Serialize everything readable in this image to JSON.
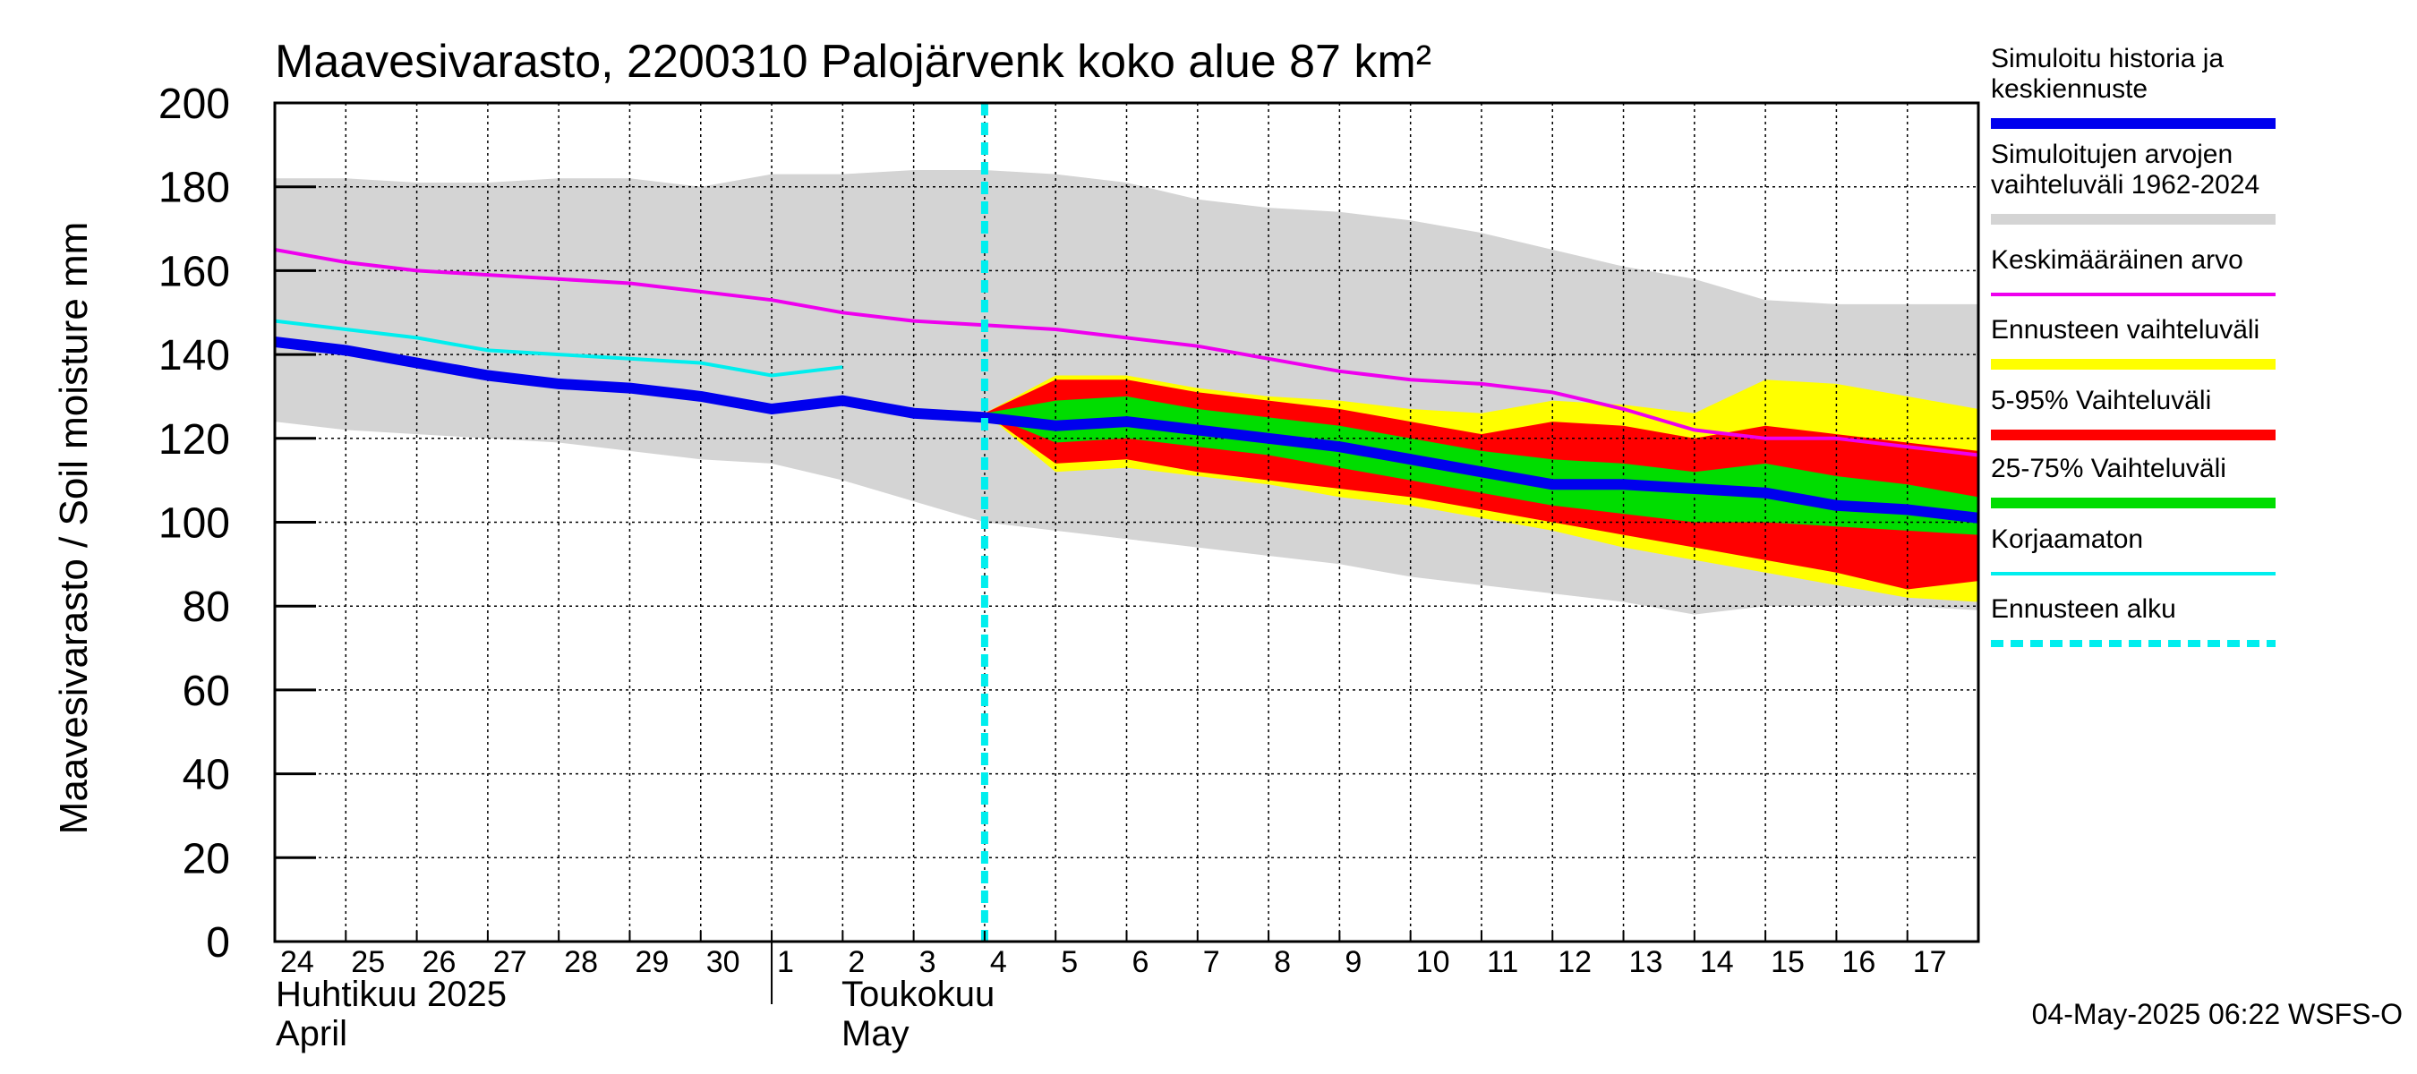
{
  "chart_data": {
    "type": "area",
    "title": "Maavesivarasto, 2200310 Palojärvenk koko alue 87 km²",
    "ylabel": "Maavesivarasto / Soil moisture   mm",
    "xlabel": "",
    "ylim": [
      0,
      200
    ],
    "yticks": [
      0,
      20,
      40,
      60,
      80,
      100,
      120,
      140,
      160,
      180,
      200
    ],
    "grid": true,
    "day_labels": [
      "24",
      "25",
      "26",
      "27",
      "28",
      "29",
      "30",
      "1",
      "2",
      "3",
      "4",
      "5",
      "6",
      "7",
      "8",
      "9",
      "10",
      "11",
      "12",
      "13",
      "14",
      "15",
      "16",
      "17"
    ],
    "months": [
      {
        "label_fi": "Huhtikuu  2025",
        "label_en": "April"
      },
      {
        "label_fi": "Toukokuu",
        "label_en": "May"
      }
    ],
    "x_range_days": [
      0,
      24
    ],
    "forecast_start_day": 10.0,
    "timestamp": "04-May-2025 06:22 WSFS-O",
    "colors": {
      "history": "#0000ee",
      "range_hist": "#d4d4d4",
      "mean": "#ee00ee",
      "yellow": "#ffff00",
      "red": "#ff0000",
      "green": "#00dd00",
      "uncorrected": "#00eeee",
      "forecast_start": "#00eeee"
    },
    "legend": [
      {
        "key": "history",
        "label1": "Simuloitu historia ja",
        "label2": "keskiennuste"
      },
      {
        "key": "range_hist",
        "label1": "Simuloitujen arvojen",
        "label2": "vaihteluväli 1962-2024"
      },
      {
        "key": "mean",
        "label1": "Keskimääräinen arvo",
        "label2": ""
      },
      {
        "key": "yellow",
        "label1": "Ennusteen vaihteluväli",
        "label2": ""
      },
      {
        "key": "red",
        "label1": "5-95% Vaihteluväli",
        "label2": ""
      },
      {
        "key": "green",
        "label1": "25-75% Vaihteluväli",
        "label2": ""
      },
      {
        "key": "uncorrected",
        "label1": "Korjaamaton",
        "label2": ""
      },
      {
        "key": "forecast_start",
        "label1": "Ennusteen alku",
        "label2": ""
      }
    ],
    "series": {
      "range_hist": {
        "x": [
          0,
          1,
          2,
          3,
          4,
          5,
          6,
          7,
          8,
          9,
          10,
          11,
          12,
          13,
          14,
          15,
          16,
          17,
          18,
          19,
          20,
          21,
          22,
          23,
          24
        ],
        "upper": [
          182,
          182,
          181,
          181,
          182,
          182,
          180,
          183,
          183,
          184,
          184,
          183,
          181,
          177,
          175,
          174,
          172,
          169,
          165,
          161,
          158,
          153,
          152,
          152,
          152
        ],
        "lower": [
          124,
          122,
          121,
          120,
          119,
          117,
          115,
          114,
          110,
          105,
          100,
          98,
          96,
          94,
          92,
          90,
          87,
          85,
          83,
          81,
          78,
          80,
          80,
          80,
          79
        ]
      },
      "yellow": {
        "x": [
          10,
          11,
          12,
          13,
          14,
          15,
          16,
          17,
          18,
          19,
          20,
          21,
          22,
          23,
          24
        ],
        "upper": [
          126,
          135,
          135,
          132,
          130,
          129,
          127,
          126,
          129,
          128,
          126,
          134,
          133,
          130,
          127
        ],
        "lower": [
          126,
          112,
          113,
          111,
          109,
          106,
          104,
          101,
          98,
          94,
          91,
          88,
          85,
          82,
          81
        ]
      },
      "red": {
        "x": [
          10,
          11,
          12,
          13,
          14,
          15,
          16,
          17,
          18,
          19,
          20,
          21,
          22,
          23,
          24
        ],
        "upper": [
          126,
          134,
          134,
          131,
          129,
          127,
          124,
          121,
          124,
          123,
          120,
          123,
          121,
          119,
          117
        ],
        "lower": [
          126,
          114,
          115,
          112,
          110,
          108,
          106,
          103,
          100,
          97,
          94,
          91,
          88,
          84,
          86
        ]
      },
      "green": {
        "x": [
          10,
          11,
          12,
          13,
          14,
          15,
          16,
          17,
          18,
          19,
          20,
          21,
          22,
          23,
          24
        ],
        "upper": [
          126,
          129,
          130,
          127,
          125,
          123,
          120,
          117,
          115,
          114,
          112,
          114,
          111,
          109,
          106
        ],
        "lower": [
          126,
          119,
          120,
          118,
          116,
          113,
          110,
          107,
          104,
          102,
          100,
          100,
          99,
          98,
          97
        ]
      },
      "history": {
        "x": [
          0,
          1,
          2,
          3,
          4,
          5,
          6,
          7,
          8,
          9,
          10,
          11,
          12,
          13,
          14,
          15,
          16,
          17,
          18,
          19,
          20,
          21,
          22,
          23,
          24
        ],
        "y": [
          143,
          141,
          138,
          135,
          133,
          132,
          130,
          127,
          129,
          126,
          125,
          123,
          124,
          122,
          120,
          118,
          115,
          112,
          109,
          109,
          108,
          107,
          104,
          103,
          101
        ]
      },
      "mean": {
        "x": [
          0,
          1,
          2,
          3,
          4,
          5,
          6,
          7,
          8,
          9,
          10,
          11,
          12,
          13,
          14,
          15,
          16,
          17,
          18,
          19,
          20,
          21,
          22,
          23,
          24
        ],
        "y": [
          165,
          162,
          160,
          159,
          158,
          157,
          155,
          153,
          150,
          148,
          147,
          146,
          144,
          142,
          139,
          136,
          134,
          133,
          131,
          127,
          122,
          120,
          120,
          118,
          116
        ]
      },
      "uncorrected": {
        "x": [
          0,
          1,
          2,
          3,
          4,
          5,
          6,
          7,
          8
        ],
        "y": [
          148,
          146,
          144,
          141,
          140,
          139,
          138,
          135,
          137
        ]
      }
    }
  }
}
